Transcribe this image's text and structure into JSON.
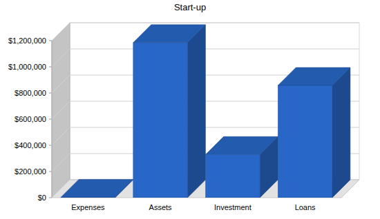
{
  "chart_data": {
    "type": "bar",
    "title": "Start-up",
    "categories": [
      "Expenses",
      "Assets",
      "Investment",
      "Loans"
    ],
    "values": [
      3000,
      1185000,
      330000,
      858000
    ],
    "color": "#2867c7",
    "ylim": [
      0,
      1200000
    ],
    "yticks": [
      {
        "value": 0,
        "label": "$0"
      },
      {
        "value": 200000,
        "label": "$200,000"
      },
      {
        "value": 400000,
        "label": "$400,000"
      },
      {
        "value": 600000,
        "label": "$600,000"
      },
      {
        "value": 800000,
        "label": "$800,000"
      },
      {
        "value": 1000000,
        "label": "$1,000,000"
      },
      {
        "value": 1200000,
        "label": "$1,200,000"
      }
    ],
    "grid": true
  }
}
